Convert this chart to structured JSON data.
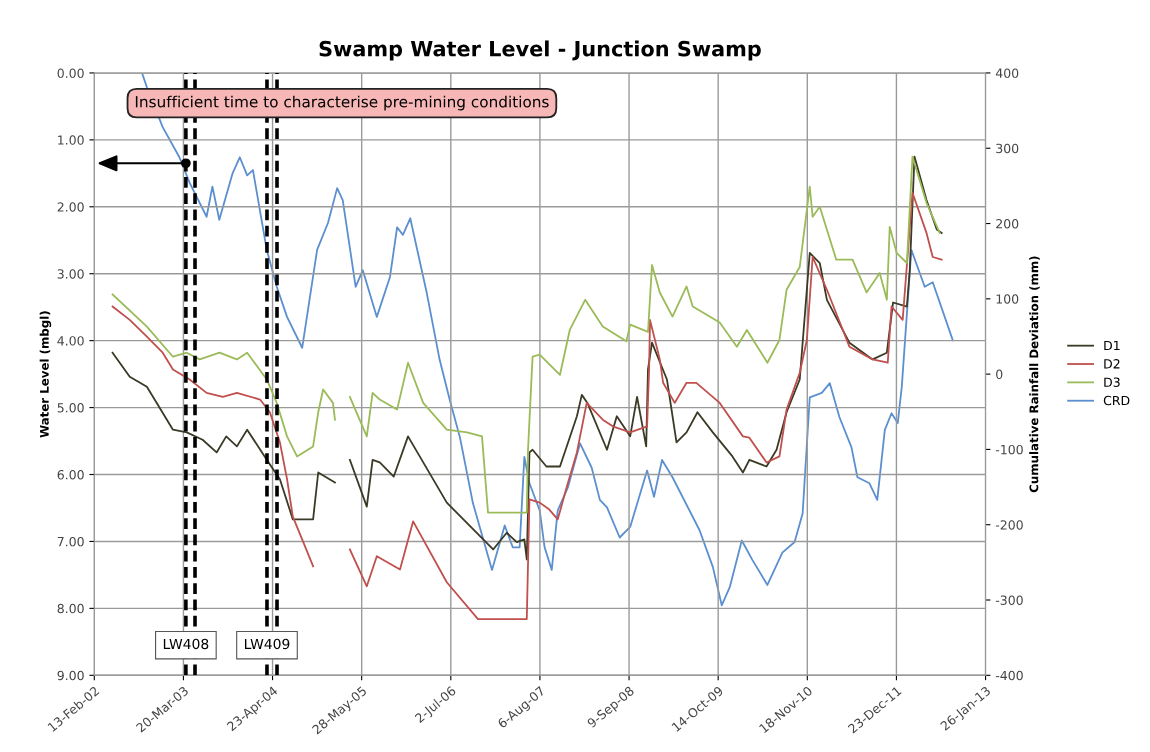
{
  "chart_data": {
    "type": "line",
    "title": "Swamp Water Level - Junction Swamp",
    "ylabel": "Water Level (mbgl)",
    "y2label": "Cumulative Rainfall Deviation (mm)",
    "xlim": [
      "2002-02-13",
      "2013-01-26"
    ],
    "xticks": [
      {
        "value": "2002-02-13",
        "label": "13-Feb-02"
      },
      {
        "value": "2003-03-20",
        "label": "20-Mar-03"
      },
      {
        "value": "2004-04-23",
        "label": "23-Apr-04"
      },
      {
        "value": "2005-05-28",
        "label": "28-May-05"
      },
      {
        "value": "2006-07-02",
        "label": "2-Jul-06"
      },
      {
        "value": "2007-08-06",
        "label": "6-Aug-07"
      },
      {
        "value": "2008-09-09",
        "label": "9-Sep-08"
      },
      {
        "value": "2009-10-14",
        "label": "14-Oct-09"
      },
      {
        "value": "2010-11-18",
        "label": "18-Nov-10"
      },
      {
        "value": "2011-12-23",
        "label": "23-Dec-11"
      },
      {
        "value": "2013-01-26",
        "label": "26-Jan-13"
      }
    ],
    "ylim": [
      9,
      0
    ],
    "yticks": [
      {
        "value": 0,
        "label": "0.00"
      },
      {
        "value": 1,
        "label": "1.00"
      },
      {
        "value": 2,
        "label": "2.00"
      },
      {
        "value": 3,
        "label": "3.00"
      },
      {
        "value": 4,
        "label": "4.00"
      },
      {
        "value": 5,
        "label": "5.00"
      },
      {
        "value": 6,
        "label": "6.00"
      },
      {
        "value": 7,
        "label": "7.00"
      },
      {
        "value": 8,
        "label": "8.00"
      },
      {
        "value": 9,
        "label": "9.00"
      }
    ],
    "y2lim": [
      -400,
      400
    ],
    "y2ticks": [
      -400,
      -300,
      -200,
      -100,
      0,
      100,
      200,
      300,
      400
    ],
    "grid": true,
    "legend": "right",
    "series": [
      {
        "name": "D1",
        "color": "#3b3a26",
        "x": [
          "2002-05-06",
          "2002-07-22",
          "2002-10-07",
          "2003-02-01",
          "2003-04-04",
          "2003-06-14",
          "2003-08-16",
          "2003-09-28",
          "2003-11-15",
          "2003-12-31",
          "2004-03-28",
          "2004-05-26",
          "2004-07-23",
          "2004-10-22",
          "2004-11-14",
          "2005-01-28",
          "2005-03-01",
          "2005-04-05",
          "2005-06-20",
          "2005-07-16",
          "2005-08-17",
          "2005-10-19",
          "2005-12-22",
          "2006-06-14",
          "2007-01-08",
          "2007-03-10",
          "2007-04-24",
          "2007-05-28",
          "2007-06-08",
          "2007-06-20",
          "2007-07-04",
          "2007-09-04",
          "2007-11-04",
          "2008-01-19",
          "2008-02-10",
          "2008-03-06",
          "2008-06-02",
          "2008-07-16",
          "2008-09-14",
          "2008-10-15",
          "2008-11-25",
          "2008-12-03",
          "2008-12-21",
          "2009-02-26",
          "2009-04-10",
          "2009-05-25",
          "2009-07-13",
          "2009-09-20",
          "2009-12-17",
          "2010-02-02",
          "2010-03-03",
          "2010-05-19",
          "2010-07-03",
          "2010-08-17",
          "2010-10-15",
          "2010-11-29",
          "2011-01-13",
          "2011-02-14",
          "2011-05-26",
          "2011-09-07",
          "2011-11-10",
          "2011-12-08",
          "2012-02-08",
          "2012-02-21",
          "2012-03-13",
          "2012-05-06",
          "2012-06-21",
          "2012-07-13"
        ],
        "values": [
          4.18,
          4.54,
          4.69,
          5.33,
          5.37,
          5.48,
          5.67,
          5.43,
          5.58,
          5.33,
          5.78,
          6.07,
          6.67,
          6.67,
          5.97,
          6.12,
          null,
          5.78,
          6.48,
          5.78,
          5.82,
          6.03,
          5.43,
          6.42,
          7.12,
          6.87,
          7.01,
          6.97,
          7.27,
          5.67,
          5.63,
          5.88,
          5.88,
          5.13,
          4.81,
          4.93,
          5.63,
          5.13,
          5.43,
          4.84,
          5.58,
          4.43,
          4.03,
          4.58,
          5.52,
          5.37,
          5.07,
          5.37,
          5.73,
          5.97,
          5.78,
          5.88,
          5.63,
          5.07,
          4.58,
          2.69,
          2.84,
          3.39,
          4.03,
          4.28,
          4.18,
          3.43,
          3.49,
          2.94,
          1.25,
          1.9,
          2.34,
          2.39
        ]
      },
      {
        "name": "D2",
        "color": "#c0504d",
        "x": [
          "2002-05-06",
          "2002-07-22",
          "2002-10-07",
          "2002-12-17",
          "2003-02-01",
          "2003-04-17",
          "2003-07-02",
          "2003-09-13",
          "2003-11-15",
          "2004-02-27",
          "2004-04-11",
          "2004-05-26",
          "2004-06-27",
          "2004-07-23",
          "2004-10-22",
          "2004-12-15",
          "2005-04-05",
          "2005-06-20",
          "2005-08-04",
          "2005-11-16",
          "2006-01-14",
          "2006-06-14",
          "2006-11-01",
          "2007-06-08",
          "2007-06-20",
          "2007-08-05",
          "2007-09-16",
          "2007-10-25",
          "2007-12-05",
          "2008-01-19",
          "2008-03-03",
          "2008-05-14",
          "2008-06-28",
          "2008-09-14",
          "2008-11-29",
          "2008-12-08",
          "2008-12-12",
          "2009-01-25",
          "2009-02-09",
          "2009-04-02",
          "2009-05-25",
          "2009-07-08",
          "2009-10-21",
          "2010-02-02",
          "2010-03-03",
          "2010-05-19",
          "2010-07-16",
          "2010-08-17",
          "2010-10-15",
          "2010-11-16",
          "2010-12-12",
          "2011-02-14",
          "2011-05-26",
          "2011-09-07",
          "2011-11-14",
          "2011-12-01",
          "2012-01-20",
          "2012-03-04",
          "2012-05-06",
          "2012-06-03",
          "2012-07-13"
        ],
        "values": [
          3.49,
          3.69,
          3.94,
          4.18,
          4.43,
          4.58,
          4.78,
          4.84,
          4.78,
          4.88,
          5.07,
          5.52,
          6.07,
          6.63,
          7.37,
          null,
          7.12,
          7.67,
          7.22,
          7.42,
          6.7,
          7.61,
          8.16,
          8.16,
          6.37,
          6.42,
          6.52,
          6.67,
          6.18,
          5.67,
          4.93,
          5.18,
          5.28,
          5.37,
          5.28,
          4.43,
          3.69,
          4.28,
          4.63,
          4.93,
          4.63,
          4.63,
          4.93,
          5.43,
          5.45,
          5.82,
          5.73,
          5.03,
          4.48,
          3.99,
          2.75,
          3.24,
          4.09,
          4.28,
          4.33,
          3.49,
          3.69,
          1.79,
          2.39,
          2.75,
          2.79
        ]
      },
      {
        "name": "D3",
        "color": "#9bbb59",
        "x": [
          "2002-05-06",
          "2002-10-07",
          "2003-02-01",
          "2003-04-04",
          "2003-06-01",
          "2003-08-29",
          "2003-11-15",
          "2003-12-31",
          "2004-03-28",
          "2004-05-12",
          "2004-06-27",
          "2004-08-11",
          "2004-10-22",
          "2004-11-14",
          "2004-12-06",
          "2005-01-19",
          "2005-01-28",
          "2005-03-01",
          "2005-04-05",
          "2005-06-20",
          "2005-07-16",
          "2005-08-17",
          "2005-11-03",
          "2005-12-22",
          "2006-02-28",
          "2006-06-14",
          "2006-09-13",
          "2006-11-19",
          "2006-12-16",
          "2007-06-08",
          "2007-06-13",
          "2007-07-04",
          "2007-08-05",
          "2007-11-04",
          "2007-12-18",
          "2008-02-25",
          "2008-05-14",
          "2008-08-28",
          "2008-09-14",
          "2008-12-03",
          "2008-12-21",
          "2009-01-25",
          "2009-03-23",
          "2009-05-25",
          "2009-06-22",
          "2009-10-21",
          "2010-01-06",
          "2010-02-20",
          "2010-05-23",
          "2010-07-16",
          "2010-08-17",
          "2010-10-15",
          "2010-11-29",
          "2010-12-12",
          "2011-01-13",
          "2011-03-28",
          "2011-06-09",
          "2011-08-11",
          "2011-10-09",
          "2011-11-10",
          "2011-11-23",
          "2011-12-24",
          "2012-02-08",
          "2012-03-04",
          "2012-05-06",
          "2012-07-04"
        ],
        "values": [
          3.31,
          3.79,
          4.24,
          4.18,
          4.28,
          4.18,
          4.28,
          4.18,
          4.58,
          4.93,
          5.43,
          5.73,
          5.58,
          5.07,
          4.73,
          4.93,
          5.18,
          null,
          4.84,
          5.43,
          4.78,
          4.88,
          5.03,
          4.33,
          4.93,
          5.33,
          5.37,
          5.43,
          6.57,
          6.57,
          5.67,
          4.24,
          4.21,
          4.51,
          3.84,
          3.39,
          3.79,
          4.01,
          3.76,
          3.87,
          2.87,
          3.28,
          3.64,
          3.19,
          3.49,
          3.73,
          4.09,
          3.84,
          4.33,
          3.99,
          3.24,
          2.9,
          1.7,
          2.15,
          2.0,
          2.79,
          2.79,
          3.28,
          2.99,
          3.39,
          2.3,
          2.69,
          2.84,
          1.25,
          1.94,
          2.39
        ]
      },
      {
        "name": "CRD",
        "color": "#5b8fd0",
        "axis": "y2",
        "x": [
          "2002-09-15",
          "2002-10-07",
          "2002-12-17",
          "2003-03-02",
          "2003-04-17",
          "2003-05-09",
          "2003-07-02",
          "2003-07-28",
          "2003-08-28",
          "2003-10-27",
          "2003-11-28",
          "2003-12-31",
          "2004-01-26",
          "2004-03-28",
          "2004-05-12",
          "2004-06-27",
          "2004-09-03",
          "2004-11-09",
          "2004-12-28",
          "2005-02-07",
          "2005-03-04",
          "2005-05-01",
          "2005-06-02",
          "2005-08-04",
          "2005-10-02",
          "2005-11-03",
          "2005-11-29",
          "2006-01-01",
          "2006-03-16",
          "2006-05-13",
          "2006-06-28",
          "2006-08-12",
          "2006-10-09",
          "2007-01-03",
          "2007-03-01",
          "2007-04-06",
          "2007-05-07",
          "2007-05-28",
          "2007-06-20",
          "2007-08-05",
          "2007-08-27",
          "2007-09-28",
          "2007-10-25",
          "2007-12-10",
          "2008-02-02",
          "2008-03-25",
          "2008-05-01",
          "2008-06-02",
          "2008-07-29",
          "2008-09-14",
          "2008-11-29",
          "2008-12-30",
          "2009-02-04",
          "2009-03-23",
          "2009-07-22",
          "2009-09-20",
          "2009-10-30",
          "2009-12-05",
          "2010-01-28",
          "2010-03-17",
          "2010-05-23",
          "2010-07-29",
          "2010-09-22",
          "2010-10-28",
          "2010-11-29",
          "2011-01-22",
          "2011-02-27",
          "2011-04-11",
          "2011-06-04",
          "2011-07-01",
          "2011-08-24",
          "2011-09-28",
          "2011-11-01",
          "2011-12-01",
          "2011-12-29",
          "2012-01-16",
          "2012-02-28",
          "2012-04-28",
          "2012-06-03",
          "2012-09-01"
        ],
        "values": [
          400,
          381,
          328,
          288,
          254,
          241,
          209,
          249,
          205,
          267,
          288,
          264,
          271,
          165,
          116,
          76,
          35,
          165,
          201,
          247,
          231,
          116,
          138,
          76,
          129,
          195,
          185,
          207,
          108,
          19,
          -35,
          -84,
          -171,
          -260,
          -201,
          -230,
          -230,
          -110,
          -145,
          -181,
          -230,
          -260,
          -181,
          -150,
          -92,
          -124,
          -167,
          -177,
          -217,
          -203,
          -128,
          -163,
          -114,
          -137,
          -207,
          -256,
          -307,
          -283,
          -221,
          -247,
          -280,
          -237,
          -223,
          -185,
          -31,
          -25,
          -12,
          -57,
          -97,
          -137,
          -145,
          -167,
          -74,
          -52,
          -65,
          -17,
          165,
          116,
          122,
          45
        ]
      }
    ],
    "ref_lines": [
      {
        "axis": "x",
        "value": "2003-03-31",
        "label": "LW408",
        "color": "#000000",
        "line_style": "dashed"
      },
      {
        "axis": "x",
        "value": "2003-05-11",
        "color": "#000000",
        "line_style": "dashed"
      },
      {
        "axis": "x",
        "value": "2004-03-29",
        "label": "LW409",
        "color": "#000000",
        "line_style": "dashed"
      },
      {
        "axis": "x",
        "value": "2004-05-13",
        "color": "#000000",
        "line_style": "dashed"
      }
    ],
    "annotations": [
      "Insufficient time to characterise pre-mining conditions"
    ]
  }
}
